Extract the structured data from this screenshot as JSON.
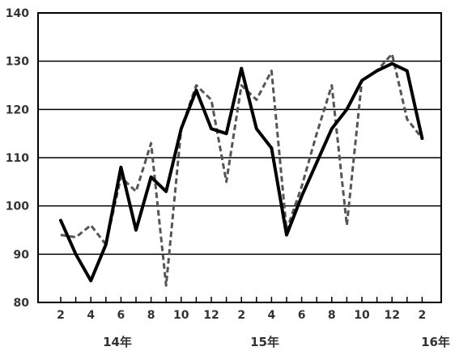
{
  "chart_data": {
    "type": "line",
    "title": "",
    "xlabel": "",
    "ylabel": "",
    "ylim": [
      80,
      140
    ],
    "yticks": [
      80,
      90,
      100,
      110,
      120,
      130,
      140
    ],
    "grid": true,
    "x_start": 2,
    "xtick_labels": [
      "2",
      "4",
      "6",
      "8",
      "10",
      "12",
      "2",
      "4",
      "6",
      "8",
      "10",
      "12",
      "2"
    ],
    "year_labels": [
      "14年",
      "15年",
      "16年"
    ],
    "series": [
      {
        "style": "solid",
        "color": "#000000",
        "values": [
          97,
          90,
          84.5,
          92,
          108,
          95,
          106,
          103,
          116,
          124,
          116,
          115,
          128.5,
          116,
          112,
          94,
          102,
          109,
          116,
          120,
          126,
          128,
          129.5,
          128,
          114
        ]
      },
      {
        "style": "dashed",
        "color": "#555555",
        "values": [
          94,
          93.5,
          96,
          92,
          106,
          103,
          113,
          83.5,
          116,
          125,
          122,
          105,
          125,
          122,
          128,
          95,
          104,
          115,
          125,
          96,
          126,
          128,
          131.5,
          118,
          114
        ]
      }
    ]
  }
}
